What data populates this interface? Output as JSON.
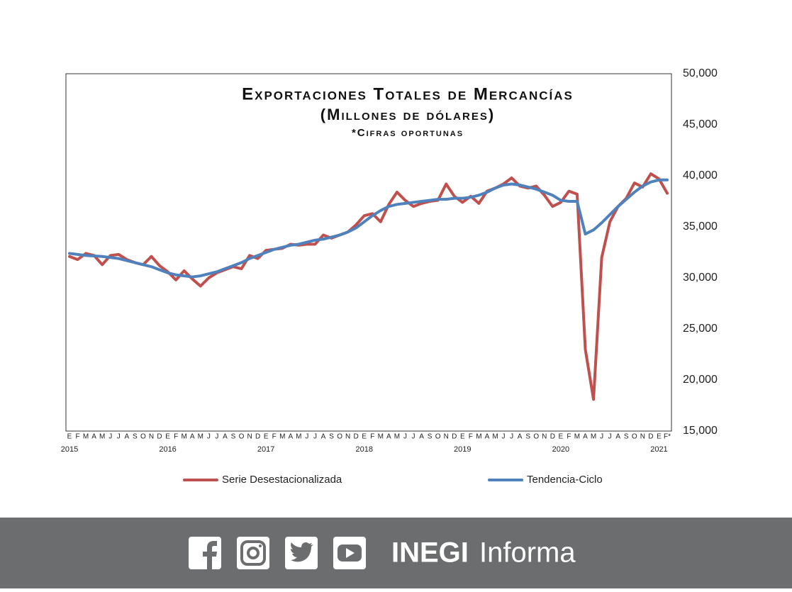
{
  "chart_data": {
    "type": "line",
    "title": "Exportaciones Totales de Mercancías",
    "subtitle": "(Millones de dólares)",
    "note": "*Cifras oportunas",
    "categories": [
      "E",
      "F",
      "M",
      "A",
      "M",
      "J",
      "J",
      "A",
      "S",
      "O",
      "N",
      "D",
      "E",
      "F",
      "M",
      "A",
      "M",
      "J",
      "J",
      "A",
      "S",
      "O",
      "N",
      "D",
      "E",
      "F",
      "M",
      "A",
      "M",
      "J",
      "J",
      "A",
      "S",
      "O",
      "N",
      "D",
      "E",
      "F",
      "M",
      "A",
      "M",
      "J",
      "J",
      "A",
      "S",
      "O",
      "N",
      "D",
      "E",
      "F",
      "M",
      "A",
      "M",
      "J",
      "J",
      "A",
      "S",
      "O",
      "N",
      "D",
      "E",
      "F",
      "M",
      "A",
      "M",
      "J",
      "J",
      "A",
      "S",
      "O",
      "N",
      "D",
      "E",
      "F*"
    ],
    "years": [
      "2015",
      null,
      null,
      null,
      null,
      null,
      null,
      null,
      null,
      null,
      null,
      null,
      "2016",
      null,
      null,
      null,
      null,
      null,
      null,
      null,
      null,
      null,
      null,
      null,
      "2017",
      null,
      null,
      null,
      null,
      null,
      null,
      null,
      null,
      null,
      null,
      null,
      "2018",
      null,
      null,
      null,
      null,
      null,
      null,
      null,
      null,
      null,
      null,
      null,
      "2019",
      null,
      null,
      null,
      null,
      null,
      null,
      null,
      null,
      null,
      null,
      null,
      "2020",
      null,
      null,
      null,
      null,
      null,
      null,
      null,
      null,
      null,
      null,
      null,
      "2021",
      null
    ],
    "series": [
      {
        "name": "Serie Desestacionalizada",
        "color": "#c0504d",
        "values": [
          32100,
          31800,
          32400,
          32200,
          31300,
          32200,
          32300,
          31800,
          31500,
          31300,
          32100,
          31200,
          30600,
          29800,
          30700,
          29900,
          29200,
          30000,
          30500,
          30800,
          31100,
          30900,
          32200,
          31900,
          32700,
          32800,
          32900,
          33300,
          33200,
          33300,
          33300,
          34200,
          33900,
          34200,
          34500,
          35200,
          36100,
          36300,
          35500,
          37200,
          38400,
          37600,
          37000,
          37300,
          37500,
          37600,
          39200,
          38000,
          37400,
          38000,
          37300,
          38500,
          38800,
          39200,
          39800,
          39000,
          38800,
          39000,
          38100,
          37000,
          37400,
          38500,
          38200,
          23000,
          18100,
          32000,
          35500,
          37000,
          37800,
          39300,
          38900,
          40200,
          39700,
          38300
        ]
      },
      {
        "name": "Tendencia-Ciclo",
        "color": "#4f81bd",
        "values": [
          32400,
          32300,
          32200,
          32150,
          32100,
          32000,
          31900,
          31700,
          31500,
          31300,
          31100,
          30800,
          30500,
          30300,
          30200,
          30100,
          30200,
          30400,
          30600,
          30900,
          31200,
          31500,
          31900,
          32200,
          32500,
          32800,
          33000,
          33200,
          33300,
          33500,
          33700,
          33800,
          34000,
          34200,
          34500,
          34900,
          35500,
          36100,
          36600,
          37000,
          37200,
          37300,
          37400,
          37500,
          37600,
          37700,
          37700,
          37800,
          37800,
          37900,
          38100,
          38400,
          38800,
          39100,
          39200,
          39100,
          38900,
          38700,
          38400,
          38100,
          37600,
          37500,
          37500,
          34300,
          34700,
          35400,
          36200,
          37000,
          37700,
          38400,
          39000,
          39400,
          39600,
          39600
        ]
      }
    ],
    "ylim": [
      15000,
      50000
    ],
    "yticks": [
      {
        "value": 15000,
        "label": "15,000"
      },
      {
        "value": 20000,
        "label": "20,000"
      },
      {
        "value": 25000,
        "label": "25,000"
      },
      {
        "value": 30000,
        "label": "30,000"
      },
      {
        "value": 35000,
        "label": "35,000"
      },
      {
        "value": 40000,
        "label": "40,000"
      },
      {
        "value": 45000,
        "label": "45,000"
      },
      {
        "value": 50000,
        "label": "50,000"
      }
    ],
    "y_axis_side": "right",
    "grid": false
  },
  "footer": {
    "brand": "INEGI",
    "brand_suffix": "Informa"
  }
}
